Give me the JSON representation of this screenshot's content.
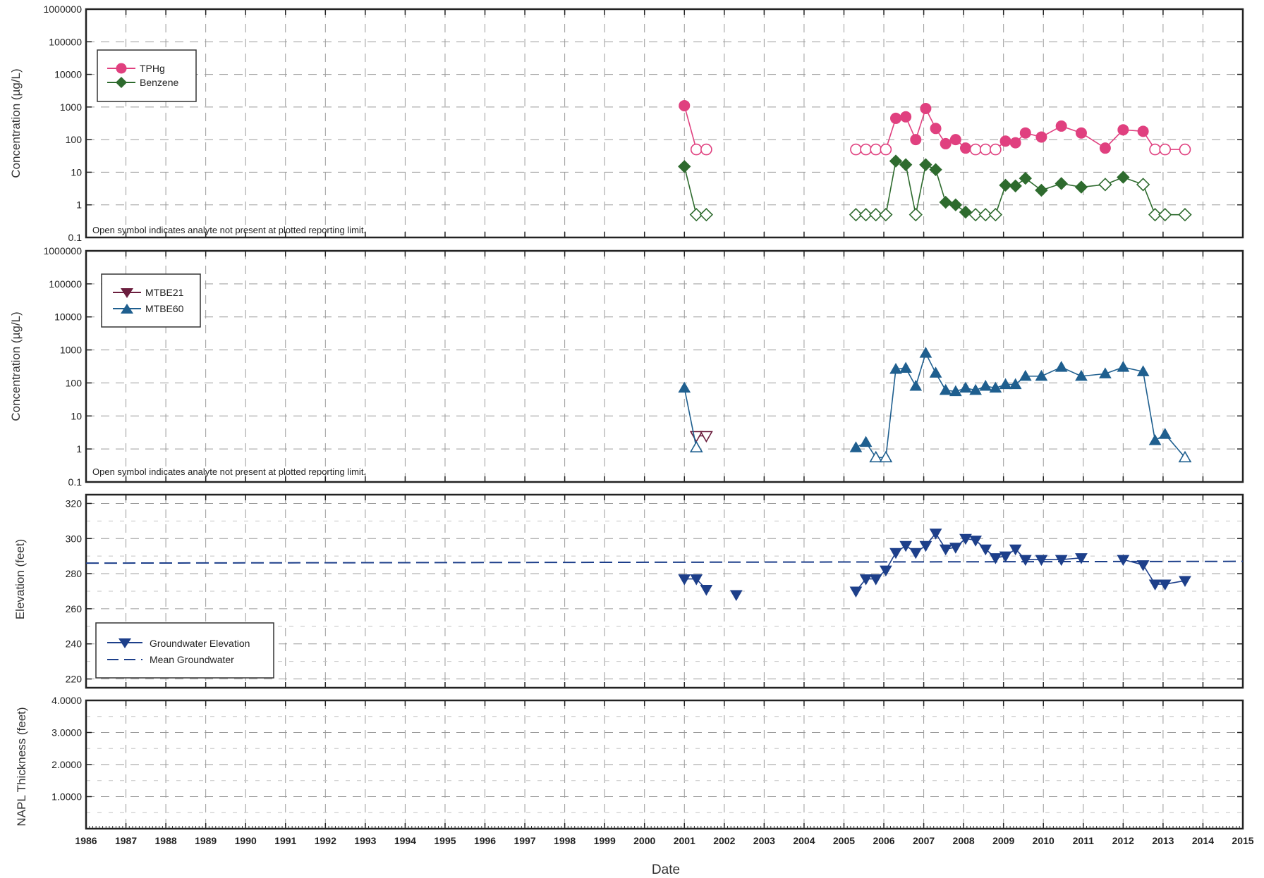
{
  "x_axis": {
    "label": "Date",
    "min": 1986,
    "max": 2015,
    "ticks": [
      "1986",
      "1987",
      "1988",
      "1989",
      "1990",
      "1991",
      "1992",
      "1993",
      "1994",
      "1995",
      "1996",
      "1997",
      "1998",
      "1999",
      "2000",
      "2001",
      "2002",
      "2003",
      "2004",
      "2005",
      "2006",
      "2007",
      "2008",
      "2009",
      "2010",
      "2011",
      "2012",
      "2013",
      "2014",
      "2015"
    ]
  },
  "note": "Open symbol indicates analyte not present at plotted reporting limit.",
  "colors": {
    "tphg": "#e0407f",
    "benzene": "#2e6b2e",
    "mtbe21": "#6b1e3e",
    "mtbe60": "#1f5f8f",
    "groundwater": "#1d3f8a",
    "mean": "#1d3f8a",
    "grid": "#9a9a9a"
  },
  "chart_data": [
    {
      "type": "line",
      "panel": "concentration-1",
      "ylabel": "Concentration (µg/L)",
      "yscale": "log",
      "ylim": [
        0.1,
        1000000
      ],
      "yticks": [
        "0.1",
        "1",
        "10",
        "100",
        "1000",
        "10000",
        "100000",
        "1000000"
      ],
      "legend": "top-left",
      "grid": true,
      "series": [
        {
          "name": "TPHg",
          "marker": "circle",
          "points": [
            {
              "x": 2001.0,
              "y": 1100,
              "nd": false
            },
            {
              "x": 2001.3,
              "y": 50,
              "nd": true
            },
            {
              "x": 2001.55,
              "y": 50,
              "nd": true
            },
            {
              "x": 2005.3,
              "y": 50,
              "nd": true
            },
            {
              "x": 2005.55,
              "y": 50,
              "nd": true
            },
            {
              "x": 2005.8,
              "y": 50,
              "nd": true
            },
            {
              "x": 2006.05,
              "y": 50,
              "nd": true
            },
            {
              "x": 2006.3,
              "y": 450,
              "nd": false
            },
            {
              "x": 2006.55,
              "y": 500,
              "nd": false
            },
            {
              "x": 2006.8,
              "y": 100,
              "nd": false
            },
            {
              "x": 2007.05,
              "y": 900,
              "nd": false
            },
            {
              "x": 2007.3,
              "y": 220,
              "nd": false
            },
            {
              "x": 2007.55,
              "y": 75,
              "nd": false
            },
            {
              "x": 2007.8,
              "y": 100,
              "nd": false
            },
            {
              "x": 2008.05,
              "y": 55,
              "nd": false
            },
            {
              "x": 2008.3,
              "y": 50,
              "nd": true
            },
            {
              "x": 2008.55,
              "y": 50,
              "nd": true
            },
            {
              "x": 2008.8,
              "y": 50,
              "nd": true
            },
            {
              "x": 2009.05,
              "y": 90,
              "nd": false
            },
            {
              "x": 2009.3,
              "y": 80,
              "nd": false
            },
            {
              "x": 2009.55,
              "y": 160,
              "nd": false
            },
            {
              "x": 2009.95,
              "y": 120,
              "nd": false
            },
            {
              "x": 2010.45,
              "y": 260,
              "nd": false
            },
            {
              "x": 2010.95,
              "y": 160,
              "nd": false
            },
            {
              "x": 2011.55,
              "y": 55,
              "nd": false
            },
            {
              "x": 2012.0,
              "y": 200,
              "nd": false
            },
            {
              "x": 2012.5,
              "y": 180,
              "nd": false
            },
            {
              "x": 2012.8,
              "y": 50,
              "nd": true
            },
            {
              "x": 2013.05,
              "y": 50,
              "nd": true
            },
            {
              "x": 2013.55,
              "y": 50,
              "nd": true
            }
          ]
        },
        {
          "name": "Benzene",
          "marker": "diamond",
          "points": [
            {
              "x": 2001.0,
              "y": 15,
              "nd": false
            },
            {
              "x": 2001.3,
              "y": 0.5,
              "nd": true
            },
            {
              "x": 2001.55,
              "y": 0.5,
              "nd": true
            },
            {
              "x": 2005.3,
              "y": 0.5,
              "nd": true
            },
            {
              "x": 2005.55,
              "y": 0.5,
              "nd": true
            },
            {
              "x": 2005.8,
              "y": 0.5,
              "nd": true
            },
            {
              "x": 2006.05,
              "y": 0.5,
              "nd": true
            },
            {
              "x": 2006.3,
              "y": 22,
              "nd": false
            },
            {
              "x": 2006.55,
              "y": 17,
              "nd": false
            },
            {
              "x": 2006.8,
              "y": 0.5,
              "nd": true
            },
            {
              "x": 2007.05,
              "y": 17,
              "nd": false
            },
            {
              "x": 2007.3,
              "y": 12,
              "nd": false
            },
            {
              "x": 2007.55,
              "y": 1.2,
              "nd": false
            },
            {
              "x": 2007.8,
              "y": 1.0,
              "nd": false
            },
            {
              "x": 2008.05,
              "y": 0.6,
              "nd": false
            },
            {
              "x": 2008.3,
              "y": 0.5,
              "nd": true
            },
            {
              "x": 2008.55,
              "y": 0.5,
              "nd": true
            },
            {
              "x": 2008.8,
              "y": 0.5,
              "nd": true
            },
            {
              "x": 2009.05,
              "y": 4,
              "nd": false
            },
            {
              "x": 2009.3,
              "y": 3.8,
              "nd": false
            },
            {
              "x": 2009.55,
              "y": 6.5,
              "nd": false
            },
            {
              "x": 2009.95,
              "y": 2.8,
              "nd": false
            },
            {
              "x": 2010.45,
              "y": 4.5,
              "nd": false
            },
            {
              "x": 2010.95,
              "y": 3.5,
              "nd": false
            },
            {
              "x": 2011.55,
              "y": 4.2,
              "nd": true
            },
            {
              "x": 2012.0,
              "y": 7,
              "nd": false
            },
            {
              "x": 2012.5,
              "y": 4.2,
              "nd": true
            },
            {
              "x": 2012.8,
              "y": 0.5,
              "nd": true
            },
            {
              "x": 2013.05,
              "y": 0.5,
              "nd": true
            },
            {
              "x": 2013.55,
              "y": 0.5,
              "nd": true
            }
          ]
        }
      ]
    },
    {
      "type": "line",
      "panel": "concentration-2",
      "ylabel": "Concentration (µg/L)",
      "yscale": "log",
      "ylim": [
        0.1,
        1000000
      ],
      "yticks": [
        "0.1",
        "1",
        "10",
        "100",
        "1000",
        "10000",
        "100000",
        "1000000"
      ],
      "legend": "top-left",
      "grid": true,
      "series": [
        {
          "name": "MTBE21",
          "marker": "triangle-down",
          "points": [
            {
              "x": 2001.3,
              "y": 2.5,
              "nd": true
            },
            {
              "x": 2001.55,
              "y": 2.5,
              "nd": true
            }
          ]
        },
        {
          "name": "MTBE60",
          "marker": "triangle-up",
          "points": [
            {
              "x": 2001.0,
              "y": 70,
              "nd": false
            },
            {
              "x": 2001.3,
              "y": 1.1,
              "nd": true
            },
            {
              "x": 2005.3,
              "y": 1.1,
              "nd": false
            },
            {
              "x": 2005.55,
              "y": 1.6,
              "nd": false
            },
            {
              "x": 2005.8,
              "y": 0.55,
              "nd": true
            },
            {
              "x": 2006.05,
              "y": 0.55,
              "nd": true
            },
            {
              "x": 2006.3,
              "y": 260,
              "nd": false
            },
            {
              "x": 2006.55,
              "y": 280,
              "nd": false
            },
            {
              "x": 2006.8,
              "y": 80,
              "nd": false
            },
            {
              "x": 2007.05,
              "y": 800,
              "nd": false
            },
            {
              "x": 2007.3,
              "y": 200,
              "nd": false
            },
            {
              "x": 2007.55,
              "y": 60,
              "nd": false
            },
            {
              "x": 2007.8,
              "y": 55,
              "nd": false
            },
            {
              "x": 2008.05,
              "y": 70,
              "nd": false
            },
            {
              "x": 2008.3,
              "y": 60,
              "nd": false
            },
            {
              "x": 2008.55,
              "y": 80,
              "nd": false
            },
            {
              "x": 2008.8,
              "y": 70,
              "nd": false
            },
            {
              "x": 2009.05,
              "y": 90,
              "nd": false
            },
            {
              "x": 2009.3,
              "y": 90,
              "nd": false
            },
            {
              "x": 2009.55,
              "y": 160,
              "nd": false
            },
            {
              "x": 2009.95,
              "y": 160,
              "nd": false
            },
            {
              "x": 2010.45,
              "y": 300,
              "nd": false
            },
            {
              "x": 2010.95,
              "y": 160,
              "nd": false
            },
            {
              "x": 2011.55,
              "y": 190,
              "nd": false
            },
            {
              "x": 2012.0,
              "y": 300,
              "nd": false
            },
            {
              "x": 2012.5,
              "y": 220,
              "nd": false
            },
            {
              "x": 2012.8,
              "y": 1.8,
              "nd": false
            },
            {
              "x": 2013.05,
              "y": 2.8,
              "nd": false
            },
            {
              "x": 2013.55,
              "y": 0.55,
              "nd": true
            }
          ]
        }
      ]
    },
    {
      "type": "line",
      "panel": "elevation",
      "ylabel": "Elevation (feet)",
      "ylim": [
        215,
        325
      ],
      "yticks": [
        "220",
        "240",
        "260",
        "280",
        "300",
        "320"
      ],
      "legend": "bottom-left",
      "grid": true,
      "series": [
        {
          "name": "Groundwater Elevation",
          "marker": "triangle-down",
          "points": [
            {
              "x": 2001.0,
              "y": 277
            },
            {
              "x": 2001.3,
              "y": 277
            },
            {
              "x": 2001.55,
              "y": 271
            },
            {
              "x": 2002.3,
              "y": 268
            },
            {
              "x": 2005.3,
              "y": 270
            },
            {
              "x": 2005.55,
              "y": 277
            },
            {
              "x": 2005.8,
              "y": 277
            },
            {
              "x": 2006.05,
              "y": 282
            },
            {
              "x": 2006.3,
              "y": 292
            },
            {
              "x": 2006.55,
              "y": 296
            },
            {
              "x": 2006.8,
              "y": 292
            },
            {
              "x": 2007.05,
              "y": 296
            },
            {
              "x": 2007.3,
              "y": 303
            },
            {
              "x": 2007.55,
              "y": 294
            },
            {
              "x": 2007.8,
              "y": 295
            },
            {
              "x": 2008.05,
              "y": 300
            },
            {
              "x": 2008.3,
              "y": 299
            },
            {
              "x": 2008.55,
              "y": 294
            },
            {
              "x": 2008.8,
              "y": 289
            },
            {
              "x": 2009.05,
              "y": 290
            },
            {
              "x": 2009.3,
              "y": 294
            },
            {
              "x": 2009.55,
              "y": 288
            },
            {
              "x": 2009.95,
              "y": 288
            },
            {
              "x": 2010.45,
              "y": 288
            },
            {
              "x": 2010.95,
              "y": 289
            },
            {
              "x": 2012.0,
              "y": 288
            },
            {
              "x": 2012.5,
              "y": 285
            },
            {
              "x": 2012.8,
              "y": 274
            },
            {
              "x": 2013.05,
              "y": 274
            },
            {
              "x": 2013.55,
              "y": 276
            }
          ]
        },
        {
          "name": "Mean Groundwater",
          "style": "dashed",
          "x": [
            1986,
            2015
          ],
          "y": [
            286,
            287
          ]
        }
      ]
    },
    {
      "type": "line",
      "panel": "napl",
      "ylabel": "NAPL Thickness (feet)",
      "ylim": [
        0,
        4
      ],
      "yticks": [
        "1.0000",
        "2.0000",
        "3.0000",
        "4.0000"
      ],
      "grid": true,
      "series": []
    }
  ]
}
